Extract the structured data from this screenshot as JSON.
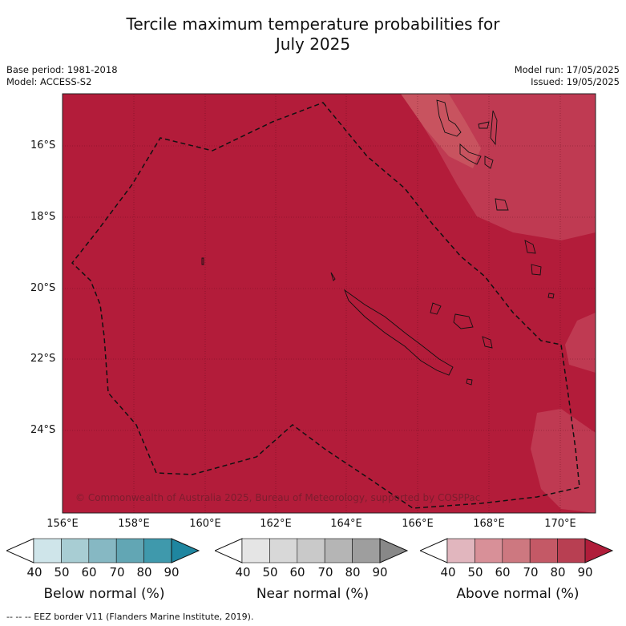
{
  "title_line1": "Tercile maximum temperature probabilities for",
  "title_line2": "July 2025",
  "base_period": "Base period: 1981-2018",
  "model": "Model: ACCESS-S2",
  "model_run": "Model run: 17/05/2025",
  "issued": "Issued: 19/05/2025",
  "lat_labels": [
    "16°S",
    "18°S",
    "20°S",
    "22°S",
    "24°S"
  ],
  "lon_labels": [
    "156°E",
    "158°E",
    "160°E",
    "162°E",
    "164°E",
    "166°E",
    "168°E",
    "170°E"
  ],
  "copyright": "© Commonwealth of Australia 2025, Bureau of Meteorology, supported by COSPPac",
  "legend": {
    "below": {
      "label": "Below normal (%)",
      "colors": [
        "#cfe5ea",
        "#a8cdd3",
        "#86b8c3",
        "#62a6b4",
        "#3f99ac",
        "#1f86a0"
      ]
    },
    "near": {
      "label": "Near normal (%)",
      "colors": [
        "#e5e5e5",
        "#d8d8d8",
        "#c9c9c9",
        "#b5b5b5",
        "#9e9e9e",
        "#888888"
      ]
    },
    "above": {
      "label": "Above normal (%)",
      "colors": [
        "#e1b6be",
        "#d89098",
        "#cd7880",
        "#c45966",
        "#b83f52",
        "#b01d3a"
      ]
    },
    "ticks": [
      "40",
      "50",
      "60",
      "70",
      "80",
      "90"
    ]
  },
  "map_colors": {
    "above80": "#b31c3a",
    "above70": "#bf3a52",
    "above60": "#c8535f"
  },
  "footer": "-- -- -- EEZ border V11 (Flanders Marine Institute, 2019)."
}
